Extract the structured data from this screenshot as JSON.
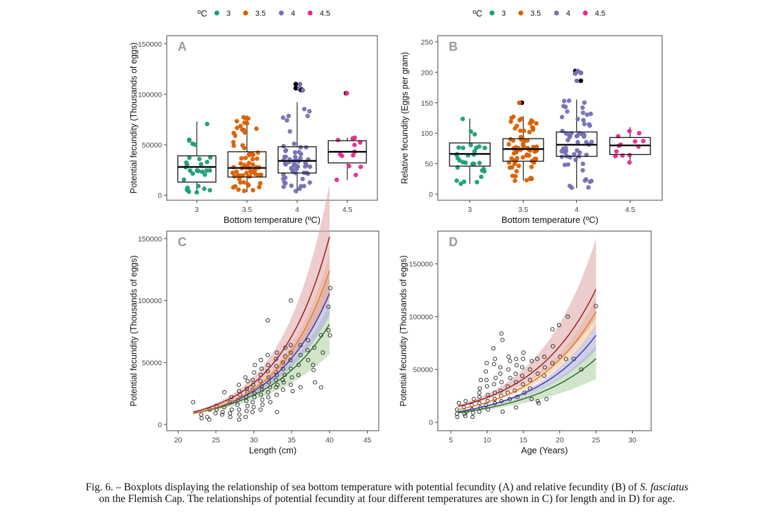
{
  "colors": {
    "t3": "#1b9e77",
    "t35": "#d95f02",
    "t4": "#7570b3",
    "t45": "#e7298a",
    "outlier": "#000000",
    "curve_3": "#2e6b2e",
    "curve_35": "#e07b28",
    "curve_4": "#3a3aa8",
    "curve_45": "#9c1c1c",
    "band_3": "#a9cf9f",
    "band_35": "#f3c49a",
    "band_4": "#a8a8d8",
    "band_45": "#dca3a3"
  },
  "legend": {
    "title": "ºC",
    "items": [
      {
        "label": "3",
        "key": "t3"
      },
      {
        "label": "3.5",
        "key": "t35"
      },
      {
        "label": "4",
        "key": "t4"
      },
      {
        "label": "4.5",
        "key": "t45"
      }
    ]
  },
  "caption": {
    "line1_a": "Fig. 6. – Boxplots displaying the relationship of sea bottom temperature with potential fecundity (A) and relative fecundity (B) of ",
    "line1_species": "S. fasciatus",
    "line2": "on the Flemish Cap. The relationships of potential fecundity at four different temperatures are shown in C) for length and in D) for age."
  },
  "chart_data": [
    {
      "panel": "A",
      "type": "box",
      "xlabel": "Bottom temperature (ºC)",
      "ylabel": "Potential fecundity (Thousands of eggs)",
      "categories": [
        "3",
        "3.5",
        "4",
        "4.5"
      ],
      "ylim": [
        -5000,
        158000
      ],
      "yticks": [
        0,
        50000,
        100000,
        150000
      ],
      "ytick_labels": [
        "0",
        "50000",
        "100000",
        "150000"
      ],
      "boxes": [
        {
          "q1": 13000,
          "median": 28000,
          "q3": 39000,
          "lower": 2000,
          "upper": 73000,
          "outliers": []
        },
        {
          "q1": 18000,
          "median": 27000,
          "q3": 43000,
          "lower": 3000,
          "upper": 79000,
          "outliers": []
        },
        {
          "q1": 22000,
          "median": 34000,
          "q3": 48000,
          "lower": 2000,
          "upper": 92000,
          "outliers": [
            110000,
            105000,
            106000,
            104000
          ]
        },
        {
          "q1": 32000,
          "median": 43000,
          "q3": 54000,
          "lower": 15000,
          "upper": 57000,
          "outliers": [
            101000
          ]
        }
      ]
    },
    {
      "panel": "B",
      "type": "box",
      "xlabel": "Bottom temperature (ºC)",
      "ylabel": "Relative fecundity (Eggs per gram)",
      "categories": [
        "3",
        "3.5",
        "4",
        "4.5"
      ],
      "ylim": [
        -10,
        260
      ],
      "yticks": [
        0,
        50,
        100,
        150,
        200,
        250
      ],
      "ytick_labels": [
        "0",
        "50",
        "100",
        "150",
        "200",
        "250"
      ],
      "boxes": [
        {
          "q1": 46,
          "median": 66,
          "q3": 84,
          "lower": 17,
          "upper": 124,
          "outliers": []
        },
        {
          "q1": 54,
          "median": 74,
          "q3": 91,
          "lower": 22,
          "upper": 128,
          "outliers": [
            150
          ]
        },
        {
          "q1": 62,
          "median": 81,
          "q3": 102,
          "lower": 10,
          "upper": 155,
          "outliers": [
            202,
            199,
            198,
            186
          ]
        },
        {
          "q1": 65,
          "median": 80,
          "q3": 93,
          "lower": 52,
          "upper": 110,
          "outliers": []
        }
      ]
    },
    {
      "panel": "C",
      "type": "scatter",
      "xlabel": "Length (cm)",
      "ylabel": "Potential fecundity (Thousands of eggs)",
      "xlim": [
        18.5,
        46.5
      ],
      "ylim": [
        -5000,
        156000
      ],
      "xticks": [
        20,
        25,
        30,
        35,
        40,
        45
      ],
      "yticks": [
        0,
        50000,
        100000,
        150000
      ],
      "ytick_labels": [
        "0",
        "50000",
        "100000",
        "150000"
      ],
      "x_range": [
        22,
        40
      ],
      "curves": [
        {
          "key": "3",
          "a": 9000,
          "b": 0.122,
          "band_lo": 0.7,
          "band_hi": 1.2
        },
        {
          "key": "4",
          "a": 9000,
          "b": 0.137,
          "band_lo": 0.83,
          "band_hi": 1.13
        },
        {
          "key": "3.5",
          "a": 8800,
          "b": 0.147,
          "band_lo": 0.86,
          "band_hi": 1.1
        },
        {
          "key": "4.5",
          "a": 10000,
          "b": 0.151,
          "band_lo": 0.68,
          "band_hi": 1.28
        }
      ],
      "points": [
        [
          22,
          18000
        ],
        [
          23,
          8000
        ],
        [
          23,
          5000
        ],
        [
          24,
          12000
        ],
        [
          24,
          6000
        ],
        [
          24,
          4000
        ],
        [
          25,
          9000
        ],
        [
          25,
          15000
        ],
        [
          25,
          12000
        ],
        [
          26,
          10000
        ],
        [
          26,
          14000
        ],
        [
          26,
          8000
        ],
        [
          26,
          26000
        ],
        [
          27,
          12000
        ],
        [
          27,
          18000
        ],
        [
          27,
          22000
        ],
        [
          27,
          9000
        ],
        [
          27,
          6000
        ],
        [
          28,
          16000
        ],
        [
          28,
          20000
        ],
        [
          28,
          24000
        ],
        [
          28,
          27000
        ],
        [
          28,
          12000
        ],
        [
          28,
          8000
        ],
        [
          28,
          4000
        ],
        [
          28,
          32000
        ],
        [
          29,
          15000
        ],
        [
          29,
          19000
        ],
        [
          29,
          22000
        ],
        [
          29,
          26000
        ],
        [
          29,
          29000
        ],
        [
          29,
          35000
        ],
        [
          29,
          38000
        ],
        [
          29,
          11000
        ],
        [
          29,
          6000
        ],
        [
          30,
          18000
        ],
        [
          30,
          22000
        ],
        [
          30,
          25000
        ],
        [
          30,
          28000
        ],
        [
          30,
          32000
        ],
        [
          30,
          36000
        ],
        [
          30,
          42000
        ],
        [
          30,
          48000
        ],
        [
          30,
          14000
        ],
        [
          30,
          10000
        ],
        [
          31,
          20000
        ],
        [
          31,
          24000
        ],
        [
          31,
          28000
        ],
        [
          31,
          31000
        ],
        [
          31,
          35000
        ],
        [
          31,
          40000
        ],
        [
          31,
          45000
        ],
        [
          31,
          52000
        ],
        [
          31,
          16000
        ],
        [
          31,
          12000
        ],
        [
          32,
          22000
        ],
        [
          32,
          26000
        ],
        [
          32,
          30000
        ],
        [
          32,
          34000
        ],
        [
          32,
          38000
        ],
        [
          32,
          43000
        ],
        [
          32,
          48000
        ],
        [
          32,
          56000
        ],
        [
          32,
          84000
        ],
        [
          32,
          18000
        ],
        [
          33,
          24000
        ],
        [
          33,
          30000
        ],
        [
          33,
          36000
        ],
        [
          33,
          42000
        ],
        [
          33,
          47000
        ],
        [
          33,
          53000
        ],
        [
          33,
          58000
        ],
        [
          33,
          40000
        ],
        [
          33,
          10000
        ],
        [
          34,
          28000
        ],
        [
          34,
          34000
        ],
        [
          34,
          40000
        ],
        [
          34,
          45000
        ],
        [
          34,
          50000
        ],
        [
          34,
          55000
        ],
        [
          34,
          62000
        ],
        [
          35,
          32000
        ],
        [
          35,
          38000
        ],
        [
          35,
          45000
        ],
        [
          35,
          52000
        ],
        [
          35,
          58000
        ],
        [
          35,
          64000
        ],
        [
          35,
          100000
        ],
        [
          36,
          40000
        ],
        [
          36,
          48000
        ],
        [
          36,
          56000
        ],
        [
          36,
          64000
        ],
        [
          37,
          52000
        ],
        [
          37,
          60000
        ],
        [
          37,
          68000
        ],
        [
          38,
          34000
        ],
        [
          38,
          48000
        ],
        [
          38,
          62000
        ],
        [
          39,
          58000
        ],
        [
          39,
          72000
        ],
        [
          40,
          95000
        ],
        [
          40,
          110000
        ],
        [
          40,
          72000
        ],
        [
          40,
          76000
        ],
        [
          36,
          30000
        ],
        [
          35,
          27000
        ],
        [
          34,
          36000
        ],
        [
          33,
          32000
        ],
        [
          38,
          44000
        ],
        [
          39,
          30000
        ]
      ]
    },
    {
      "panel": "D",
      "type": "scatter",
      "xlabel": "Age (Years)",
      "ylabel": "Potential fecundity (Thousands of eggs)",
      "xlim": [
        3.2,
        32.6
      ],
      "ylim": [
        -8000,
        181000
      ],
      "xticks": [
        5,
        10,
        15,
        20,
        25,
        30
      ],
      "yticks": [
        0,
        50000,
        100000,
        150000
      ],
      "ytick_labels": [
        "0",
        "50000",
        "100000",
        "150000"
      ],
      "x_range": [
        6,
        25
      ],
      "curves": [
        {
          "key": "3",
          "a": 9000,
          "b": 0.1,
          "band_lo": 0.68,
          "band_hi": 1.2
        },
        {
          "key": "4",
          "a": 10000,
          "b": 0.111,
          "band_lo": 0.83,
          "band_hi": 1.13
        },
        {
          "key": "3.5",
          "a": 12000,
          "b": 0.114,
          "band_lo": 0.85,
          "band_hi": 1.12
        },
        {
          "key": "4.5",
          "a": 15000,
          "b": 0.112,
          "band_lo": 0.78,
          "band_hi": 1.38
        }
      ],
      "points": [
        [
          6,
          18000
        ],
        [
          6,
          12000
        ],
        [
          6,
          8000
        ],
        [
          6,
          5000
        ],
        [
          7,
          10000
        ],
        [
          7,
          14000
        ],
        [
          7,
          20000
        ],
        [
          7,
          8000
        ],
        [
          7,
          6000
        ],
        [
          8,
          12000
        ],
        [
          8,
          16000
        ],
        [
          8,
          22000
        ],
        [
          8,
          9000
        ],
        [
          8,
          5000
        ],
        [
          9,
          14000
        ],
        [
          9,
          18000
        ],
        [
          9,
          24000
        ],
        [
          9,
          28000
        ],
        [
          9,
          32000
        ],
        [
          9,
          10000
        ],
        [
          10,
          16000
        ],
        [
          10,
          20000
        ],
        [
          10,
          26000
        ],
        [
          10,
          34000
        ],
        [
          10,
          40000
        ],
        [
          10,
          48000
        ],
        [
          10,
          12000
        ],
        [
          11,
          18000
        ],
        [
          11,
          22000
        ],
        [
          11,
          28000
        ],
        [
          11,
          36000
        ],
        [
          11,
          42000
        ],
        [
          11,
          55000
        ],
        [
          11,
          60000
        ],
        [
          12,
          20000
        ],
        [
          12,
          25000
        ],
        [
          12,
          30000
        ],
        [
          12,
          38000
        ],
        [
          12,
          46000
        ],
        [
          12,
          52000
        ],
        [
          12,
          84000
        ],
        [
          12,
          78000
        ],
        [
          12,
          10000
        ],
        [
          13,
          22000
        ],
        [
          13,
          28000
        ],
        [
          13,
          34000
        ],
        [
          13,
          42000
        ],
        [
          13,
          50000
        ],
        [
          13,
          58000
        ],
        [
          13,
          62000
        ],
        [
          14,
          24000
        ],
        [
          14,
          30000
        ],
        [
          14,
          38000
        ],
        [
          14,
          46000
        ],
        [
          14,
          54000
        ],
        [
          14,
          60000
        ],
        [
          15,
          28000
        ],
        [
          15,
          36000
        ],
        [
          15,
          44000
        ],
        [
          15,
          52000
        ],
        [
          15,
          60000
        ],
        [
          15,
          66000
        ],
        [
          16,
          32000
        ],
        [
          16,
          40000
        ],
        [
          16,
          50000
        ],
        [
          16,
          58000
        ],
        [
          17,
          20000
        ],
        [
          17,
          18000
        ],
        [
          17,
          46000
        ],
        [
          17,
          60000
        ],
        [
          18,
          52000
        ],
        [
          18,
          62000
        ],
        [
          18,
          44000
        ],
        [
          19,
          56000
        ],
        [
          19,
          72000
        ],
        [
          19,
          88000
        ],
        [
          20,
          62000
        ],
        [
          20,
          92000
        ],
        [
          21,
          100000
        ],
        [
          21,
          60000
        ],
        [
          22,
          60000
        ],
        [
          23,
          50000
        ],
        [
          25,
          110000
        ],
        [
          14,
          14000
        ],
        [
          16,
          22000
        ],
        [
          18,
          22000
        ],
        [
          9,
          40000
        ],
        [
          10,
          56000
        ],
        [
          11,
          70000
        ]
      ]
    }
  ]
}
